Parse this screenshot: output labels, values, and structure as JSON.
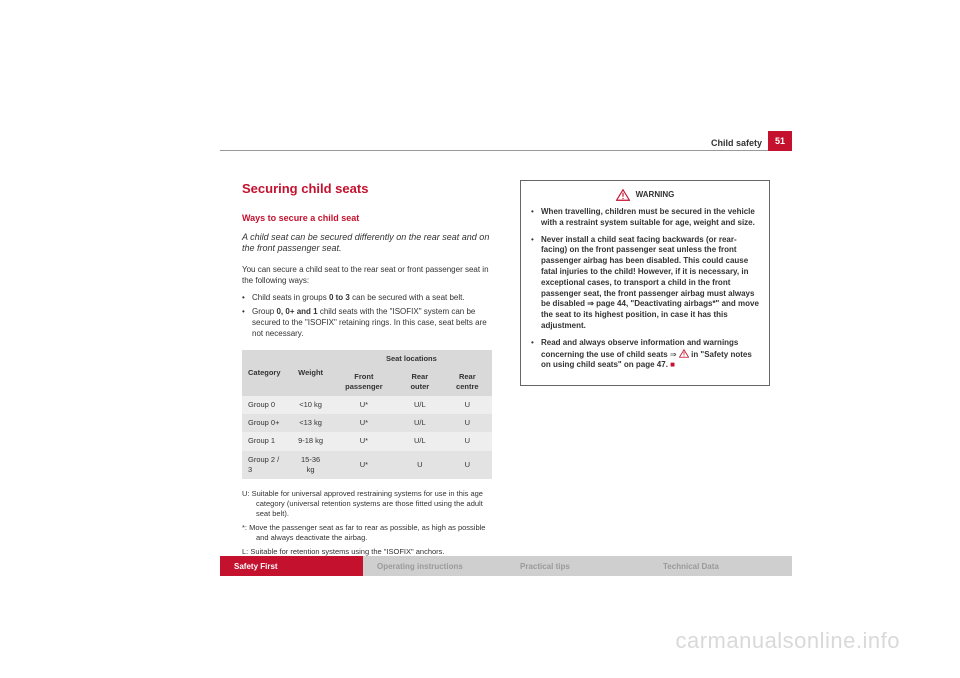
{
  "colors": {
    "brand_red": "#c4112e",
    "rule_grey": "#999999",
    "tab_inactive_bg": "#cfcfcf",
    "tab_inactive_fg": "#9a9a9a",
    "table_header_bg": "#d9d9d9",
    "table_row_odd": "#eeeeee",
    "table_row_even": "#e3e3e3",
    "text": "#333333",
    "watermark": "#d9d9d9",
    "warn_border": "#666666"
  },
  "header": {
    "section": "Child safety",
    "page_number": "51"
  },
  "left": {
    "h1": "Securing child seats",
    "h2": "Ways to secure a child seat",
    "lede": "A child seat can be secured differently on the rear seat and on the front passenger seat.",
    "intro": "You can secure a child seat to the rear seat or front passenger seat in the following ways:",
    "bullets": [
      "Child seats in groups <b>0 to 3</b> can be secured with a seat belt.",
      "Group <b>0, 0+ and 1</b> child seats with the \"ISOFIX\" system can be secured to the \"ISOFIX\" retaining rings. In this case, seat belts are not necessary."
    ],
    "table": {
      "super_header": "Seat locations",
      "columns": [
        "Category",
        "Weight",
        "Front passenger",
        "Rear outer",
        "Rear centre"
      ],
      "rows": [
        [
          "Group 0",
          "<10 kg",
          "U*",
          "U/L",
          "U"
        ],
        [
          "Group 0+",
          "<13 kg",
          "U*",
          "U/L",
          "U"
        ],
        [
          "Group 1",
          "9-18 kg",
          "U*",
          "U/L",
          "U"
        ],
        [
          "Group 2 / 3",
          "15-36 kg",
          "U*",
          "U",
          "U"
        ]
      ]
    },
    "legend": [
      "U:  Suitable for universal approved restraining systems for use in this age category (universal retention systems are those fitted using the adult seat belt).",
      "*:  Move the passenger seat as far to rear as possible, as high as possible and always deactivate the airbag.",
      "L:  Suitable for retention systems using the \"ISOFIX\" anchors."
    ]
  },
  "right": {
    "warning_label": "WARNING",
    "bullets": [
      "<b>When travelling, children must be secured in the vehicle with a restraint system suitable for age, weight and size.</b>",
      "<b>Never install a child seat facing backwards (or rear-facing) on the front passenger seat unless the front passenger airbag has been disabled. This could cause fatal injuries to the child! However, if it is necessary, in exceptional cases, to transport a child in the front passenger seat, the front passenger airbag must always be disabled ⇒ page 44, \"Deactivating airbags*\" and move the seat to its highest position, in case it has this adjustment.</b>",
      "<b>Read and always observe information and warnings concerning the use of child seats</b> ⇒ <svg class=\"inline-warn-icon\" viewBox=\"0 0 24 20\"><polygon points=\"12,1 23,19 1,19\" fill=\"none\" stroke=\"#c4112e\" stroke-width=\"2\"/><rect x=\"11\" y=\"6\" width=\"2\" height=\"7\" fill=\"#c4112e\"/><rect x=\"11\" y=\"15\" width=\"2\" height=\"2\" fill=\"#c4112e\"/></svg> <b>in \"Safety notes on using child seats\" on page 47.</b>"
    ]
  },
  "tabs": [
    {
      "label": "Safety First",
      "active": true
    },
    {
      "label": "Operating instructions",
      "active": false
    },
    {
      "label": "Practical tips",
      "active": false
    },
    {
      "label": "Technical Data",
      "active": false
    }
  ],
  "watermark": "carmanualsonline.info"
}
